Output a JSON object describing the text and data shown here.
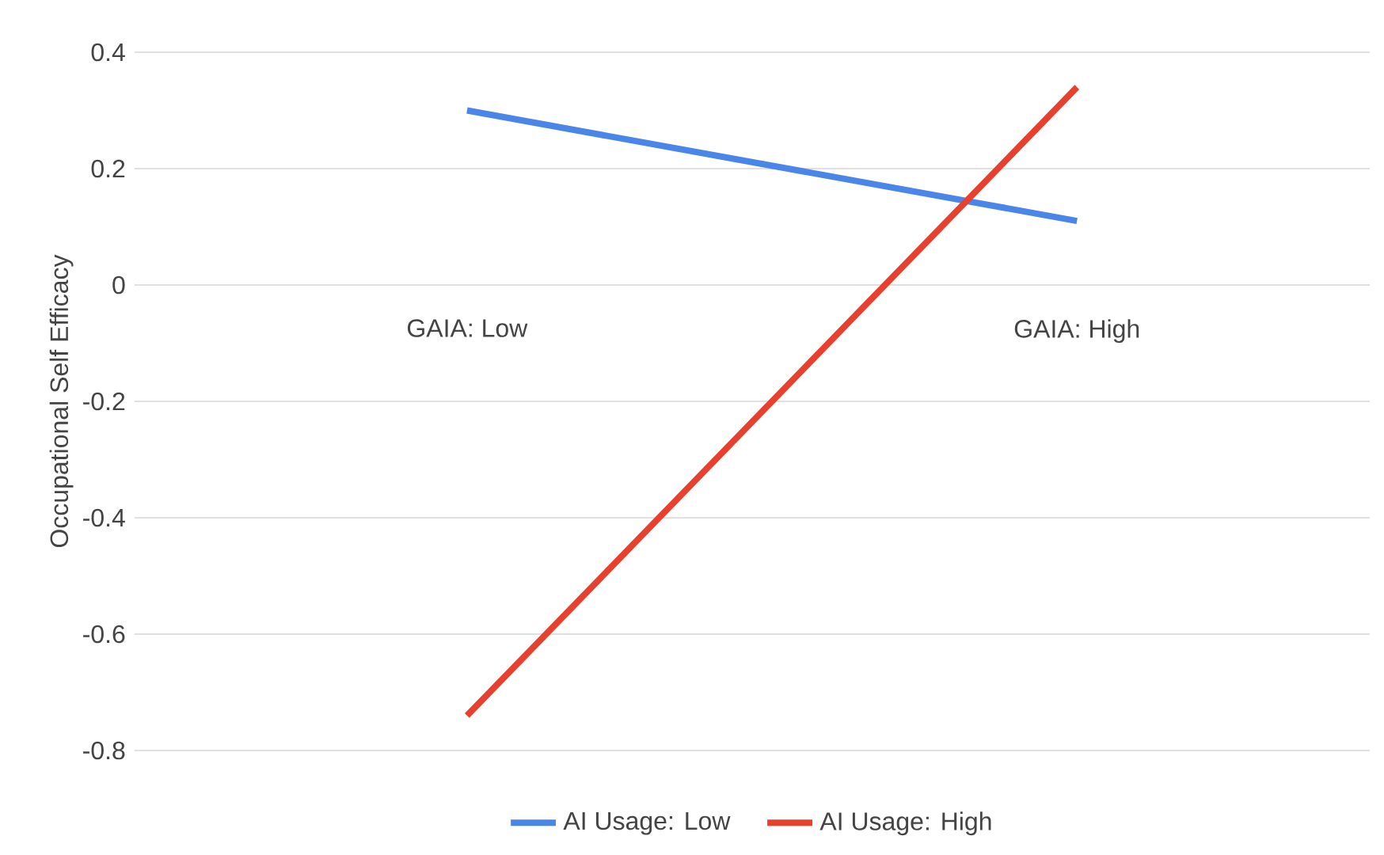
{
  "chart_data": {
    "type": "line",
    "ylabel": "Occupational Self Efficacy",
    "categories": [
      "GAIA: Low",
      "GAIA: High"
    ],
    "series": [
      {
        "name": "AI Usage: Low",
        "color": "#4a86e8",
        "values": [
          0.3,
          0.11
        ]
      },
      {
        "name": "AI Usage: High",
        "color": "#e8402f",
        "values": [
          -0.74,
          0.34
        ]
      }
    ],
    "ylim": [
      -0.8,
      0.4
    ],
    "yticks": [
      0.4,
      0.2,
      0,
      -0.2,
      -0.4,
      -0.6,
      -0.8
    ],
    "grid": "y",
    "legend": "bottom"
  }
}
